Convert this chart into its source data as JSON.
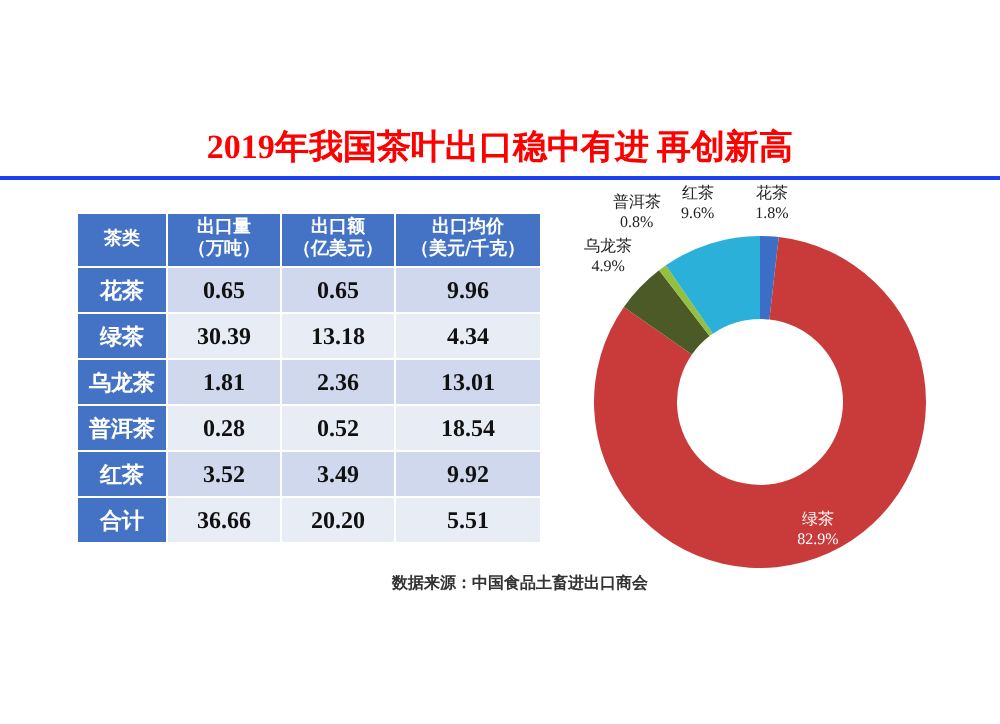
{
  "chart_data": [
    {
      "type": "heatmap",
      "title": "2019年我国茶叶出口稳中有进 再创新高",
      "ylabel": "茶类",
      "categories": [
        "出口量（万吨）",
        "出口额（亿美元）",
        "出口均价（美元/千克）"
      ],
      "y_categories": [
        "花茶",
        "绿茶",
        "乌龙茶",
        "普洱茶",
        "红茶",
        "合计"
      ],
      "cells": [
        [
          0.65,
          0.65,
          9.96
        ],
        [
          30.39,
          13.18,
          4.34
        ],
        [
          1.81,
          2.36,
          13.01
        ],
        [
          0.28,
          0.52,
          18.54
        ],
        [
          3.52,
          3.49,
          9.92
        ],
        [
          36.66,
          20.2,
          5.51
        ]
      ],
      "cell_labels": [
        [
          "0.65",
          "0.65",
          "9.96"
        ],
        [
          "30.39",
          "13.18",
          "4.34"
        ],
        [
          "1.81",
          "2.36",
          "13.01"
        ],
        [
          "0.28",
          "0.52",
          "18.54"
        ],
        [
          "3.52",
          "3.49",
          "9.92"
        ],
        [
          "36.66",
          "20.20",
          "5.51"
        ]
      ],
      "data_labels": true
    },
    {
      "type": "donut",
      "categories": [
        "花茶",
        "绿茶",
        "乌龙茶",
        "普洱茶",
        "红茶"
      ],
      "values": [
        1.8,
        82.9,
        4.9,
        0.8,
        9.6
      ],
      "colors": [
        "#3b6fc6",
        "#c93b3b",
        "#4b5a27",
        "#93c03e",
        "#2bb1d9"
      ],
      "value_labels": [
        "1.8%",
        "82.9%",
        "4.9%",
        "0.8%",
        "9.6%"
      ],
      "annotations": [
        "数据来源：中国食品土畜进出口商会"
      ]
    }
  ]
}
